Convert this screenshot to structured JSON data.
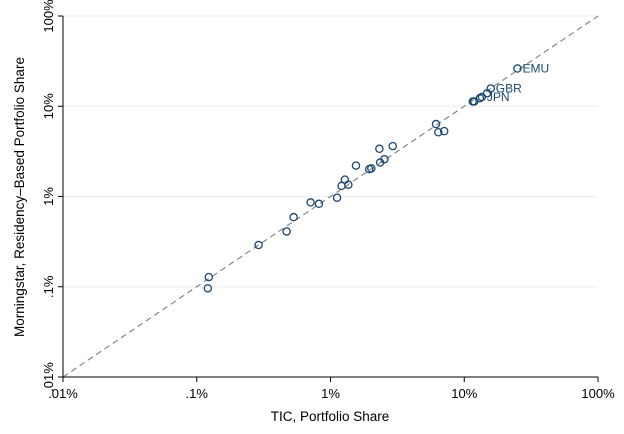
{
  "chart_data": {
    "type": "scatter",
    "scale": "log",
    "xlabel": "TIC, Portfolio Share",
    "ylabel": "Morningstar, Residency–Based Portfolio Share",
    "xlim": [
      0.0001,
      1
    ],
    "ylim": [
      0.0001,
      1
    ],
    "x_ticks": [
      0.0001,
      0.001,
      0.01,
      0.1,
      1
    ],
    "x_tick_labels": [
      ".01%",
      ".1%",
      "1%",
      "10%",
      "100%"
    ],
    "y_ticks": [
      0.0001,
      0.001,
      0.01,
      0.1,
      1
    ],
    "y_tick_labels": [
      ".01%",
      ".1%",
      "1%",
      "10%",
      "100%"
    ],
    "grid": "horizontal",
    "reference_line": "45-degree dashed",
    "colors": {
      "marker": "#1a476f",
      "line": "#7f7f7f",
      "grid": "#eaf2f3"
    },
    "series": [
      {
        "points": [
          {
            "x": 0.00121,
            "y": 0.00096
          },
          {
            "x": 0.00123,
            "y": 0.00128
          },
          {
            "x": 0.0029,
            "y": 0.0029
          },
          {
            "x": 0.0047,
            "y": 0.0041
          },
          {
            "x": 0.0053,
            "y": 0.0059
          },
          {
            "x": 0.0071,
            "y": 0.0086
          },
          {
            "x": 0.0082,
            "y": 0.0083
          },
          {
            "x": 0.0112,
            "y": 0.0097
          },
          {
            "x": 0.0121,
            "y": 0.0131
          },
          {
            "x": 0.0128,
            "y": 0.0154
          },
          {
            "x": 0.0136,
            "y": 0.0135
          },
          {
            "x": 0.0155,
            "y": 0.022
          },
          {
            "x": 0.0195,
            "y": 0.0201
          },
          {
            "x": 0.0202,
            "y": 0.0205
          },
          {
            "x": 0.0232,
            "y": 0.0338
          },
          {
            "x": 0.0235,
            "y": 0.0238
          },
          {
            "x": 0.0253,
            "y": 0.0259
          },
          {
            "x": 0.0292,
            "y": 0.0362
          },
          {
            "x": 0.0615,
            "y": 0.0635
          },
          {
            "x": 0.064,
            "y": 0.0515
          },
          {
            "x": 0.0708,
            "y": 0.053
          },
          {
            "x": 0.1158,
            "y": 0.113
          },
          {
            "x": 0.1188,
            "y": 0.1128
          },
          {
            "x": 0.1309,
            "y": 0.1232
          },
          {
            "x": 0.1354,
            "y": 0.1267
          },
          {
            "x": 0.148,
            "y": 0.139
          },
          {
            "x": 0.1578,
            "y": 0.1574
          },
          {
            "x": 0.25,
            "y": 0.262
          }
        ]
      }
    ],
    "point_labels": [
      {
        "text": "EMU",
        "x": 0.25,
        "y": 0.262,
        "anchor": "right"
      },
      {
        "text": "GBR",
        "x": 0.1578,
        "y": 0.1574,
        "anchor": "right"
      },
      {
        "text": "JPN",
        "x": 0.1354,
        "y": 0.1267,
        "anchor": "right"
      }
    ]
  }
}
